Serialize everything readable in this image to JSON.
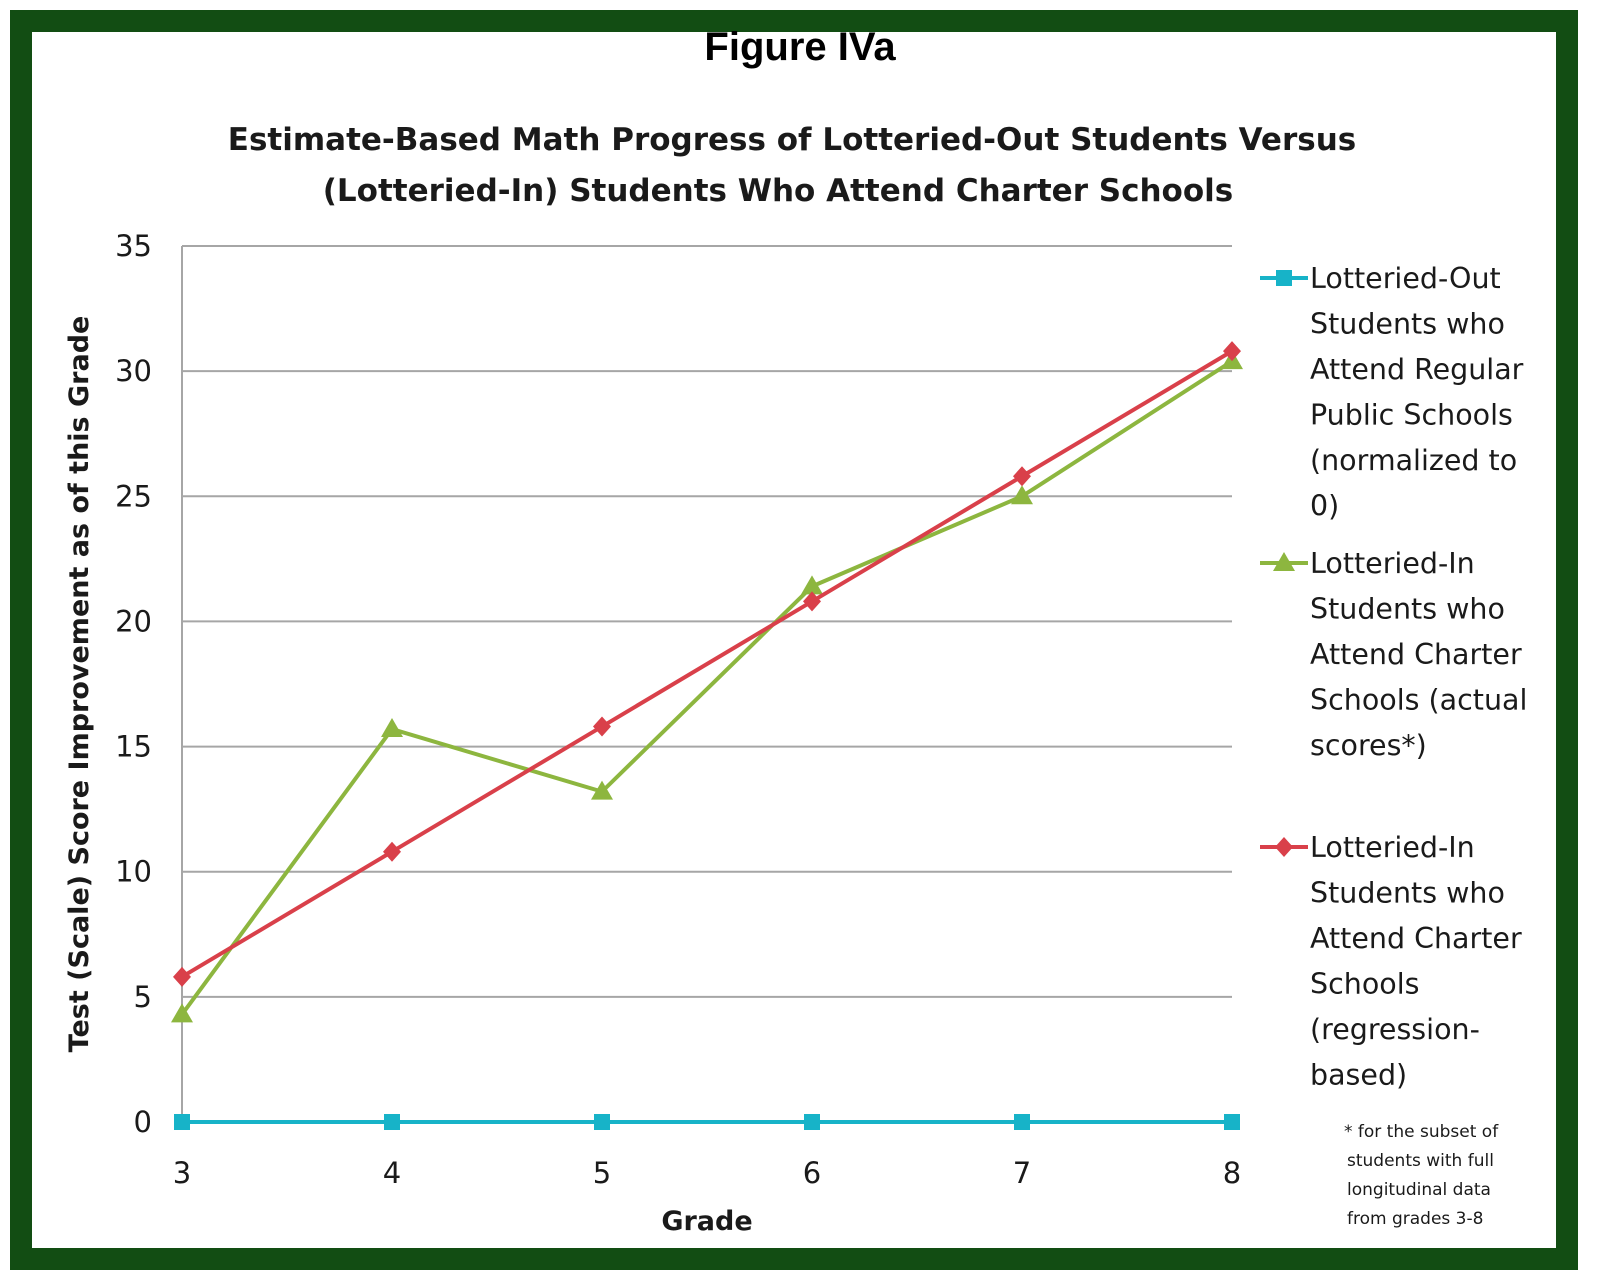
{
  "figure_title": "Figure IVa",
  "colors": {
    "frame": "#124D13",
    "grid": "#A6A6A6",
    "series": [
      "#17B3C8",
      "#8DB63F",
      "#D9404A"
    ]
  },
  "chart_data": {
    "type": "line",
    "title": "Estimate-Based Math Progress of Lotteried-Out Students Versus (Lotteried-In) Students Who Attend Charter Schools",
    "title_lines": [
      "Estimate-Based Math Progress of Lotteried-Out Students Versus",
      "(Lotteried-In) Students Who Attend Charter Schools"
    ],
    "xlabel": "Grade",
    "ylabel": "Test (Scale) Score Improvement as of this Grade",
    "x": [
      3,
      4,
      5,
      6,
      7,
      8
    ],
    "x_tick_labels": [
      "3",
      "4",
      "5",
      "6",
      "7",
      "8"
    ],
    "ylim": [
      0,
      35
    ],
    "y_ticks": [
      0,
      5,
      10,
      15,
      20,
      25,
      30,
      35
    ],
    "y_tick_labels": [
      "0",
      "5",
      "10",
      "15",
      "20",
      "25",
      "30",
      "35"
    ],
    "grid": true,
    "legend_position": "right",
    "series": [
      {
        "name": "Lotteried-Out Students who Attend Regular Public Schools (normalized to 0)",
        "legend_lines": [
          "Lotteried-Out",
          "Students who",
          "Attend Regular",
          "Public Schools",
          "(normalized to",
          "0)"
        ],
        "marker": "square",
        "color": "#17B3C8",
        "values": [
          0,
          0,
          0,
          0,
          0,
          0
        ]
      },
      {
        "name": "Lotteried-In Students who Attend Charter Schools (actual scores*)",
        "legend_lines": [
          "Lotteried-In",
          "Students who",
          "Attend Charter",
          "Schools (actual",
          "scores*)"
        ],
        "marker": "triangle",
        "color": "#8DB63F",
        "values": [
          4.3,
          15.7,
          13.2,
          21.4,
          25.0,
          30.4
        ]
      },
      {
        "name": "Lotteried-In Students who Attend Charter Schools (regression-based)",
        "legend_lines": [
          "Lotteried-In",
          "Students who",
          "Attend Charter",
          "Schools",
          "(regression-",
          "based)"
        ],
        "marker": "diamond",
        "color": "#D9404A",
        "values": [
          5.8,
          10.8,
          15.8,
          20.8,
          25.8,
          30.8
        ]
      }
    ],
    "footnote": "* for the subset of students with full longitudinal data from grades 3-8",
    "footnote_lines": [
      "* for the subset of",
      "students with full",
      "longitudinal data",
      "from grades 3-8"
    ]
  }
}
